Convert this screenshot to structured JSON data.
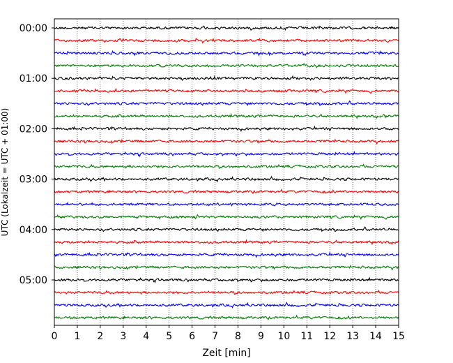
{
  "chart_data": {
    "type": "line",
    "title": "",
    "xlabel": "Zeit  [min]",
    "ylabel": "UTC (Lokalzeit = UTC + 01:00)",
    "xlim": [
      0,
      15
    ],
    "x_ticks": [
      0,
      1,
      2,
      3,
      4,
      5,
      6,
      7,
      8,
      9,
      10,
      11,
      12,
      13,
      14,
      15
    ],
    "x_tick_labels": [
      "0",
      "1",
      "2",
      "3",
      "4",
      "5",
      "6",
      "7",
      "8",
      "9",
      "10",
      "11",
      "12",
      "13",
      "14",
      "15"
    ],
    "y_tick_labels": [
      "00:00",
      "01:00",
      "02:00",
      "03:00",
      "04:00",
      "05:00"
    ],
    "trace_interval_min": 15,
    "trace_count": 24,
    "trace_start_times": [
      "00:00",
      "00:15",
      "00:30",
      "00:45",
      "01:00",
      "01:15",
      "01:30",
      "01:45",
      "02:00",
      "02:15",
      "02:30",
      "02:45",
      "03:00",
      "03:15",
      "03:30",
      "03:45",
      "04:00",
      "04:15",
      "04:30",
      "04:45",
      "05:00",
      "05:15",
      "05:30",
      "05:45"
    ],
    "trace_color_cycle": [
      "#000000",
      "#ff0000",
      "#0000ff",
      "#008000"
    ],
    "vertical_grid": true,
    "grid_style": "dotted"
  }
}
